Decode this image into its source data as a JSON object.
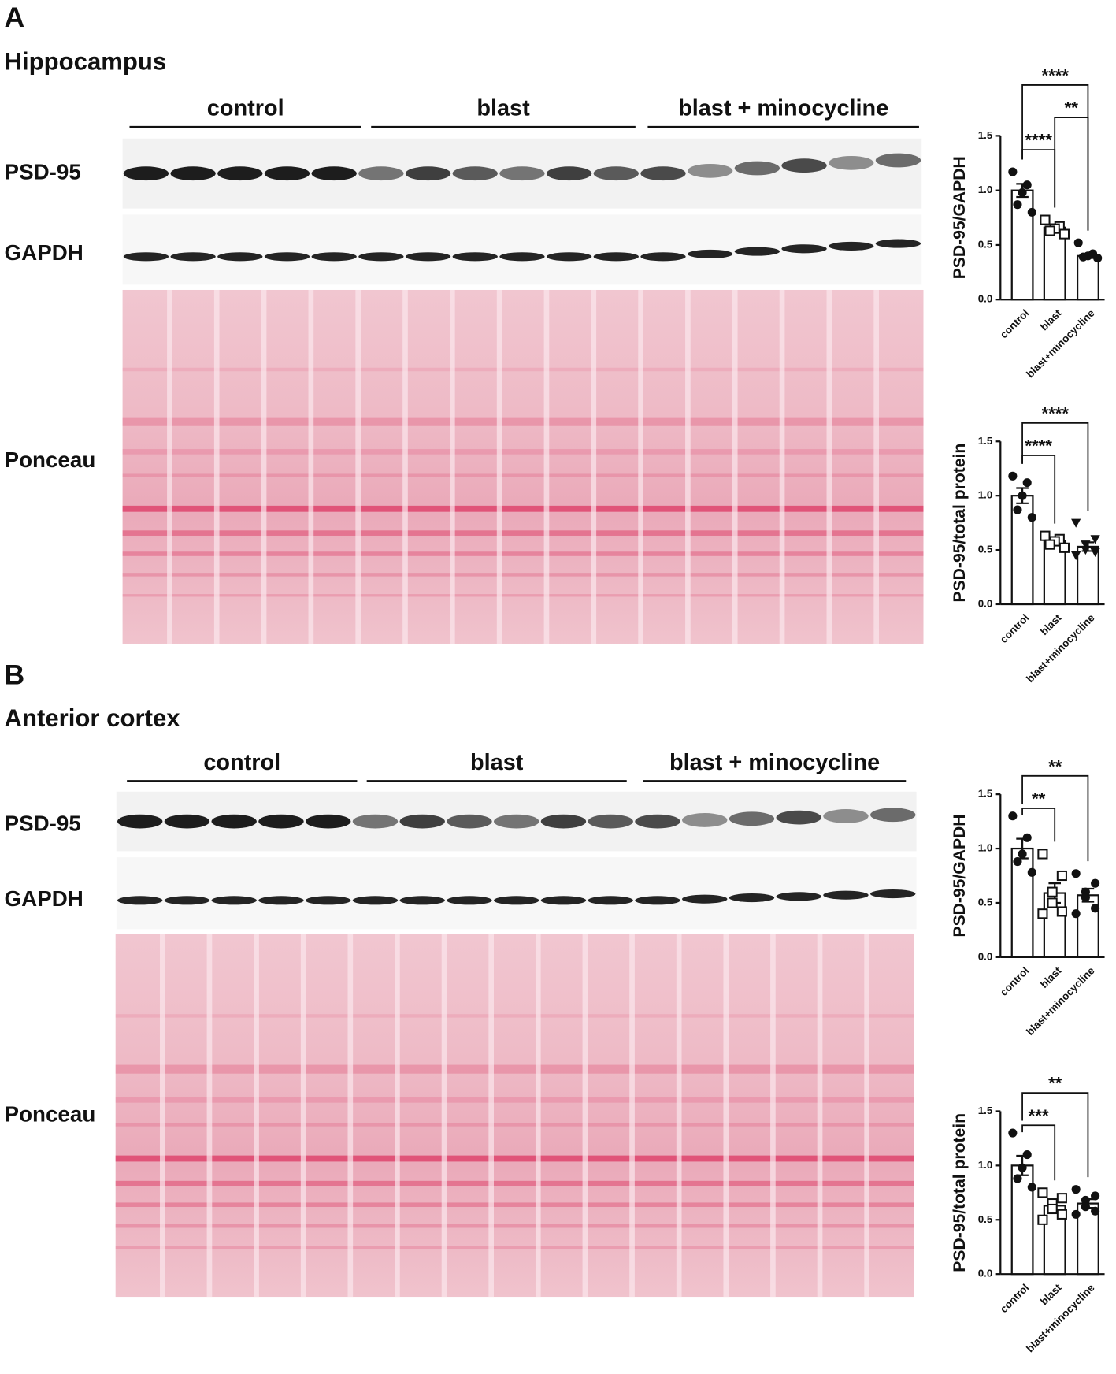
{
  "panels": [
    {
      "letter": "A",
      "region": "Hippocampus",
      "groups": [
        "control",
        "blast",
        "blast + minocycline"
      ],
      "blots": [
        "PSD-95",
        "GAPDH",
        "Ponceau"
      ]
    },
    {
      "letter": "B",
      "region": "Anterior cortex",
      "groups": [
        "control",
        "blast",
        "blast + minocycline"
      ],
      "blots": [
        "PSD-95",
        "GAPDH",
        "Ponceau"
      ]
    }
  ],
  "chart_data": [
    {
      "type": "bar",
      "ylabel": "PSD-95/GAPDH",
      "categories": [
        "control",
        "blast",
        "blast+minocycline"
      ],
      "values": [
        1.0,
        0.66,
        0.4
      ],
      "errors": [
        0.06,
        0.03,
        0.02
      ],
      "points": [
        [
          1.17,
          1.05,
          0.98,
          0.87,
          0.8
        ],
        [
          0.73,
          0.67,
          0.65,
          0.63,
          0.6
        ],
        [
          0.52,
          0.42,
          0.4,
          0.39,
          0.38
        ]
      ],
      "markers": [
        "circle",
        "square",
        "circle"
      ],
      "comparisons": [
        {
          "between": [
            0,
            1
          ],
          "label": "****"
        },
        {
          "between": [
            1,
            2
          ],
          "label": "**"
        },
        {
          "between": [
            0,
            2
          ],
          "label": "****"
        }
      ],
      "ylim": [
        0,
        1.5
      ],
      "yticks": [
        {
          "value": 0,
          "label": "0.0"
        },
        {
          "value": 0.5,
          "label": "0.5"
        },
        {
          "value": 1,
          "label": "1.0"
        },
        {
          "value": 1.5,
          "label": "1.5"
        }
      ]
    },
    {
      "type": "bar",
      "ylabel": "PSD-95/total protein",
      "categories": [
        "control",
        "blast",
        "blast+minocycline"
      ],
      "values": [
        1.0,
        0.58,
        0.53
      ],
      "errors": [
        0.07,
        0.03,
        0.04
      ],
      "points": [
        [
          1.18,
          1.12,
          1.0,
          0.87,
          0.8
        ],
        [
          0.63,
          0.6,
          0.58,
          0.55,
          0.52
        ],
        [
          0.75,
          0.6,
          0.55,
          0.5,
          0.48,
          0.45
        ]
      ],
      "markers": [
        "circle",
        "square",
        "triangle"
      ],
      "comparisons": [
        {
          "between": [
            0,
            1
          ],
          "label": "****"
        },
        {
          "between": [
            0,
            2
          ],
          "label": "****"
        }
      ],
      "ylim": [
        0,
        1.5
      ],
      "yticks": [
        {
          "value": 0,
          "label": "0.0"
        },
        {
          "value": 0.5,
          "label": "0.5"
        },
        {
          "value": 1,
          "label": "1.0"
        },
        {
          "value": 1.5,
          "label": "1.5"
        }
      ]
    },
    {
      "type": "bar",
      "ylabel": "PSD-95/GAPDH",
      "categories": [
        "control",
        "blast",
        "blast+minocycline"
      ],
      "values": [
        1.0,
        0.59,
        0.57
      ],
      "errors": [
        0.09,
        0.09,
        0.06
      ],
      "points": [
        [
          1.3,
          1.1,
          0.95,
          0.88,
          0.78
        ],
        [
          0.95,
          0.75,
          0.6,
          0.5,
          0.42,
          0.4
        ],
        [
          0.77,
          0.68,
          0.6,
          0.55,
          0.45,
          0.4
        ]
      ],
      "markers": [
        "circle",
        "square",
        "circle"
      ],
      "comparisons": [
        {
          "between": [
            0,
            1
          ],
          "label": "**"
        },
        {
          "between": [
            0,
            2
          ],
          "label": "**"
        }
      ],
      "ylim": [
        0,
        1.5
      ],
      "yticks": [
        {
          "value": 0,
          "label": "0.0"
        },
        {
          "value": 0.5,
          "label": "0.5"
        },
        {
          "value": 1,
          "label": "1.0"
        },
        {
          "value": 1.5,
          "label": "1.5"
        }
      ]
    },
    {
      "type": "bar",
      "ylabel": "PSD-95/total protein",
      "categories": [
        "control",
        "blast",
        "blast+minocycline"
      ],
      "values": [
        1.0,
        0.63,
        0.65
      ],
      "errors": [
        0.09,
        0.05,
        0.04
      ],
      "points": [
        [
          1.3,
          1.1,
          0.98,
          0.88,
          0.8
        ],
        [
          0.75,
          0.7,
          0.65,
          0.6,
          0.55,
          0.5
        ],
        [
          0.78,
          0.72,
          0.68,
          0.62,
          0.58,
          0.55
        ]
      ],
      "markers": [
        "circle",
        "square",
        "circle"
      ],
      "comparisons": [
        {
          "between": [
            0,
            1
          ],
          "label": "***"
        },
        {
          "between": [
            0,
            2
          ],
          "label": "**"
        }
      ],
      "ylim": [
        0,
        1.5
      ],
      "yticks": [
        {
          "value": 0,
          "label": "0.0"
        },
        {
          "value": 0.5,
          "label": "0.5"
        },
        {
          "value": 1,
          "label": "1.0"
        },
        {
          "value": 1.5,
          "label": "1.5"
        }
      ]
    }
  ]
}
